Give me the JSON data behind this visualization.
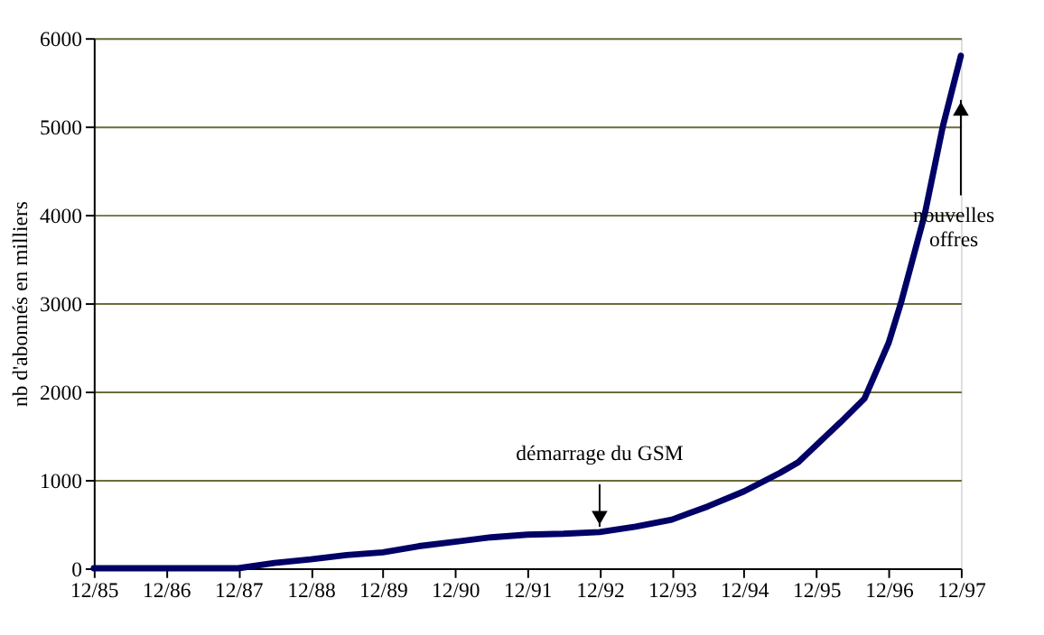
{
  "chart_data": {
    "type": "line",
    "ylabel": "nb d'abonnés en milliers",
    "x": [
      "1985-12",
      "1986-12",
      "1987-12",
      "1988-06",
      "1988-12",
      "1989-06",
      "1989-12",
      "1990-06",
      "1990-12",
      "1991-06",
      "1991-12",
      "1992-06",
      "1992-12",
      "1993-06",
      "1993-12",
      "1994-06",
      "1994-12",
      "1995-06",
      "1995-09",
      "1996-04",
      "1996-08",
      "1996-12",
      "1997-02",
      "1997-06",
      "1997-09",
      "1997-12"
    ],
    "series": [
      {
        "color": "#000066",
        "values": [
          0,
          0,
          0,
          60,
          100,
          150,
          180,
          250,
          300,
          350,
          380,
          390,
          410,
          470,
          550,
          700,
          870,
          1080,
          1200,
          1650,
          1920,
          2550,
          3000,
          4000,
          5000,
          5800
        ]
      }
    ],
    "xlim": [
      "1985-12",
      "1997-12"
    ],
    "xticks": [
      {
        "value": "1985-12",
        "label": "12/85"
      },
      {
        "value": "1986-12",
        "label": "12/86"
      },
      {
        "value": "1987-12",
        "label": "12/87"
      },
      {
        "value": "1988-12",
        "label": "12/88"
      },
      {
        "value": "1989-12",
        "label": "12/89"
      },
      {
        "value": "1990-12",
        "label": "12/90"
      },
      {
        "value": "1991-12",
        "label": "12/91"
      },
      {
        "value": "1992-12",
        "label": "12/92"
      },
      {
        "value": "1993-12",
        "label": "12/93"
      },
      {
        "value": "1994-12",
        "label": "12/94"
      },
      {
        "value": "1995-12",
        "label": "12/95"
      },
      {
        "value": "1996-12",
        "label": "12/96"
      },
      {
        "value": "1997-12",
        "label": "12/97"
      }
    ],
    "ylim": [
      0,
      6000
    ],
    "yticks": [
      0,
      1000,
      2000,
      3000,
      4000,
      5000,
      6000
    ],
    "grid": "y",
    "marker": "none",
    "line_style": "solid",
    "annotations": [
      {
        "text": "démarrage du GSM",
        "x": "1992-12",
        "y": 410
      },
      {
        "text": "nouvelles offres",
        "x": "1997-12",
        "y": 5300
      }
    ]
  }
}
